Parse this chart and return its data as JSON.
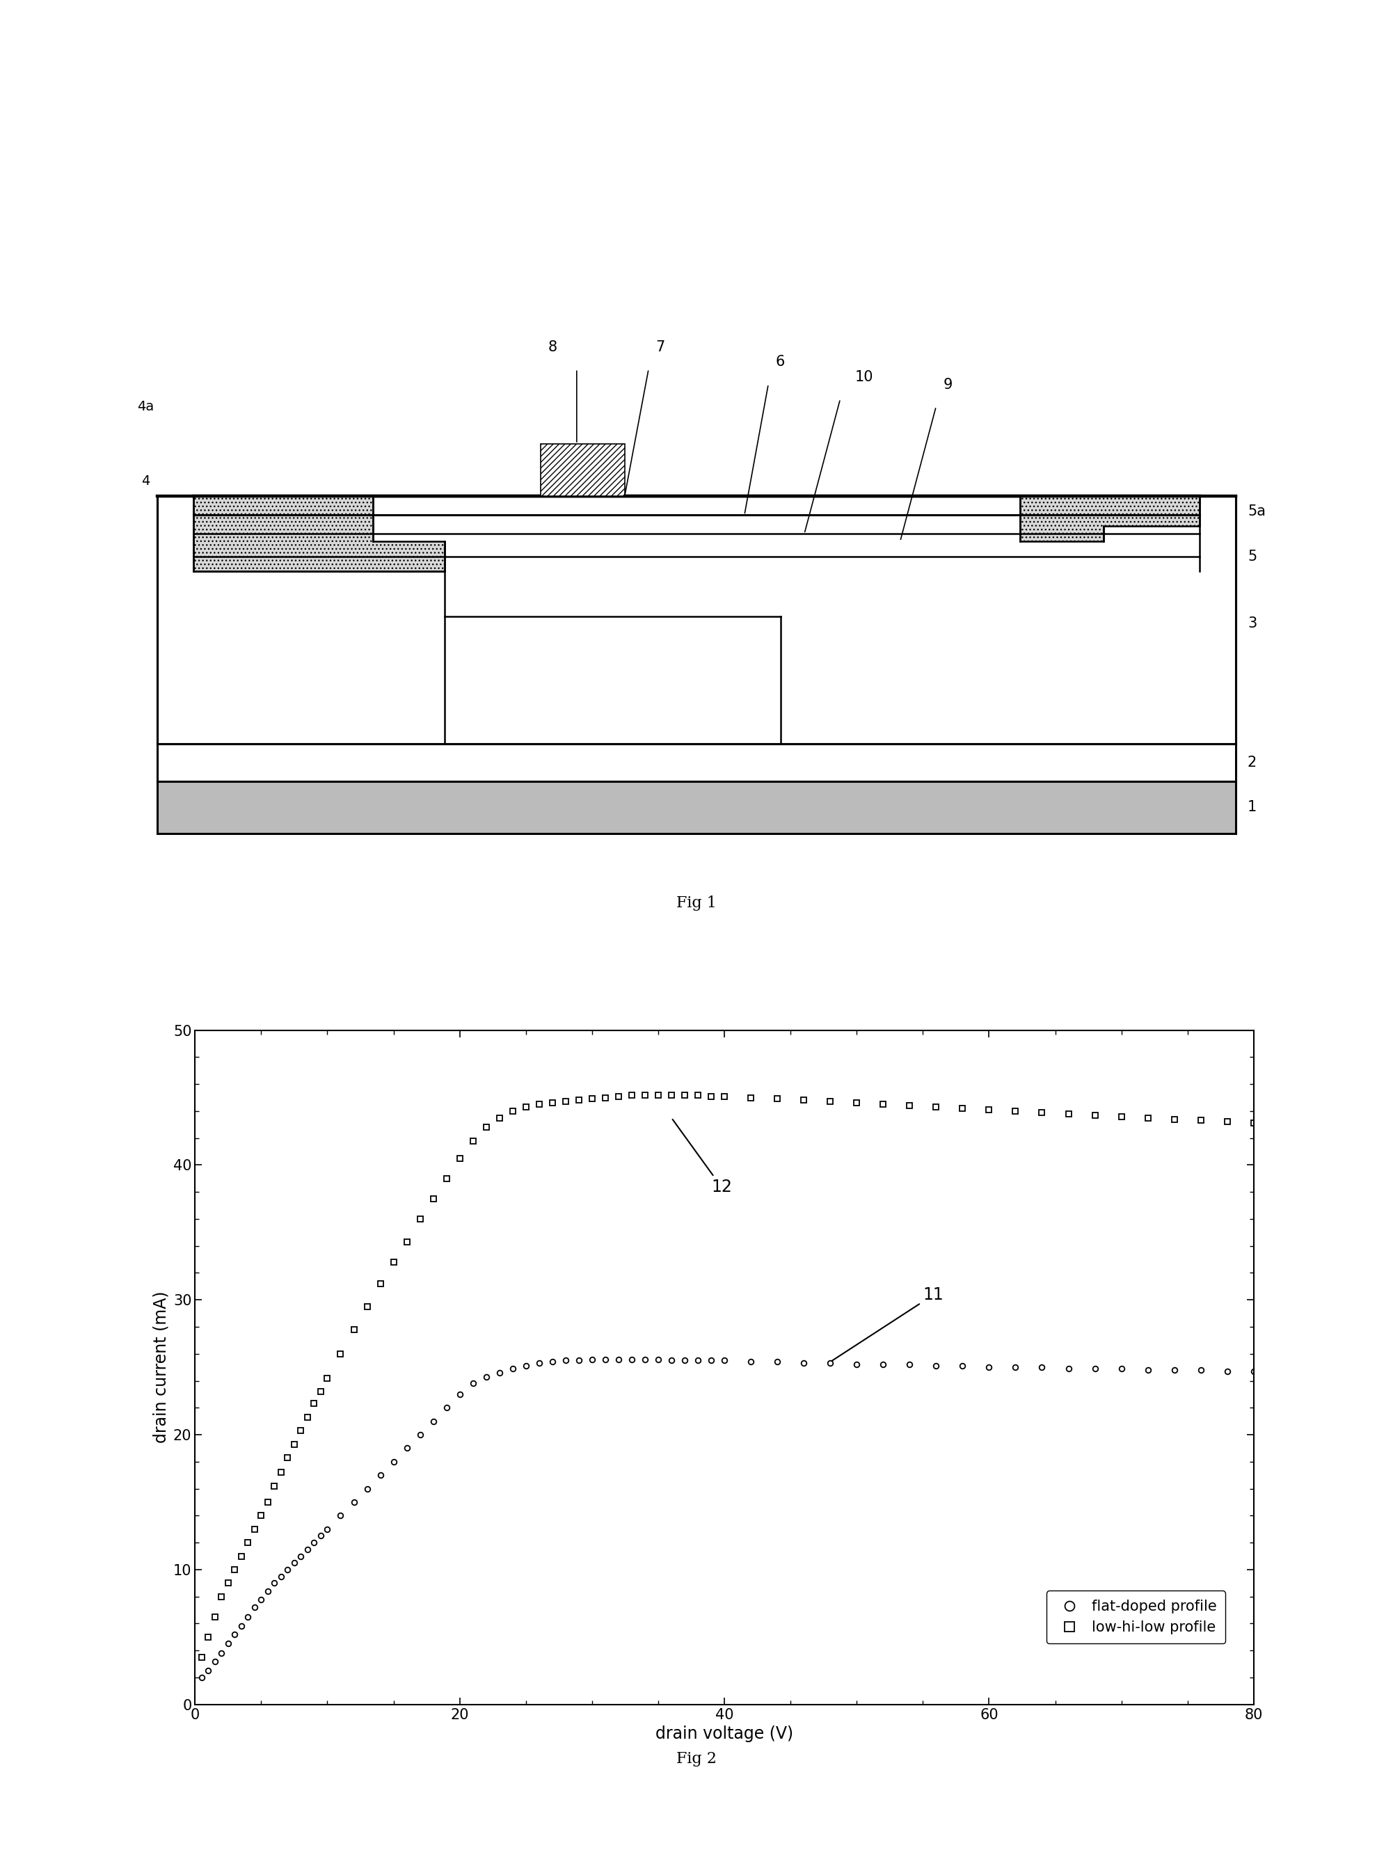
{
  "fig1_title": "Fig 1",
  "fig2_title": "Fig 2",
  "fig2_xlabel": "drain voltage (V)",
  "fig2_ylabel": "drain current (mA)",
  "fig2_xlim": [
    0,
    80
  ],
  "fig2_ylim": [
    0,
    50
  ],
  "fig2_xticks": [
    0,
    20,
    40,
    60,
    80
  ],
  "fig2_yticks": [
    0,
    10,
    20,
    30,
    40,
    50
  ],
  "legend_labels": [
    "flat-doped profile",
    "low-hi-low profile"
  ],
  "annotation_11": "11",
  "annotation_12": "12",
  "background_color": "#ffffff",
  "x11": [
    0.5,
    1,
    1.5,
    2,
    2.5,
    3,
    3.5,
    4,
    4.5,
    5,
    5.5,
    6,
    6.5,
    7,
    7.5,
    8,
    8.5,
    9,
    9.5,
    10,
    11,
    12,
    13,
    14,
    15,
    16,
    17,
    18,
    19,
    20,
    21,
    22,
    23,
    24,
    25,
    26,
    27,
    28,
    29,
    30,
    31,
    32,
    33,
    34,
    35,
    36,
    37,
    38,
    39,
    40,
    42,
    44,
    46,
    48,
    50,
    52,
    54,
    56,
    58,
    60,
    62,
    64,
    66,
    68,
    70,
    72,
    74,
    76,
    78,
    80
  ],
  "y11": [
    2.0,
    2.5,
    3.2,
    3.8,
    4.5,
    5.2,
    5.8,
    6.5,
    7.2,
    7.8,
    8.4,
    9.0,
    9.5,
    10.0,
    10.5,
    11.0,
    11.5,
    12.0,
    12.5,
    13.0,
    14.0,
    15.0,
    16.0,
    17.0,
    18.0,
    19.0,
    20.0,
    21.0,
    22.0,
    23.0,
    23.8,
    24.3,
    24.6,
    24.9,
    25.1,
    25.3,
    25.4,
    25.5,
    25.5,
    25.6,
    25.6,
    25.6,
    25.6,
    25.6,
    25.6,
    25.5,
    25.5,
    25.5,
    25.5,
    25.5,
    25.4,
    25.4,
    25.3,
    25.3,
    25.2,
    25.2,
    25.2,
    25.1,
    25.1,
    25.0,
    25.0,
    25.0,
    24.9,
    24.9,
    24.9,
    24.8,
    24.8,
    24.8,
    24.7,
    24.7
  ],
  "x12": [
    0.5,
    1,
    1.5,
    2,
    2.5,
    3,
    3.5,
    4,
    4.5,
    5,
    5.5,
    6,
    6.5,
    7,
    7.5,
    8,
    8.5,
    9,
    9.5,
    10,
    11,
    12,
    13,
    14,
    15,
    16,
    17,
    18,
    19,
    20,
    21,
    22,
    23,
    24,
    25,
    26,
    27,
    28,
    29,
    30,
    31,
    32,
    33,
    34,
    35,
    36,
    37,
    38,
    39,
    40,
    42,
    44,
    46,
    48,
    50,
    52,
    54,
    56,
    58,
    60,
    62,
    64,
    66,
    68,
    70,
    72,
    74,
    76,
    78,
    80
  ],
  "y12": [
    3.5,
    5.0,
    6.5,
    8.0,
    9.0,
    10.0,
    11.0,
    12.0,
    13.0,
    14.0,
    15.0,
    16.2,
    17.2,
    18.3,
    19.3,
    20.3,
    21.3,
    22.3,
    23.2,
    24.2,
    26.0,
    27.8,
    29.5,
    31.2,
    32.8,
    34.3,
    36.0,
    37.5,
    39.0,
    40.5,
    41.8,
    42.8,
    43.5,
    44.0,
    44.3,
    44.5,
    44.6,
    44.7,
    44.8,
    44.9,
    45.0,
    45.1,
    45.2,
    45.2,
    45.2,
    45.2,
    45.2,
    45.2,
    45.1,
    45.1,
    45.0,
    44.9,
    44.8,
    44.7,
    44.6,
    44.5,
    44.4,
    44.3,
    44.2,
    44.1,
    44.0,
    43.9,
    43.8,
    43.7,
    43.6,
    43.5,
    43.4,
    43.3,
    43.2,
    43.1
  ]
}
